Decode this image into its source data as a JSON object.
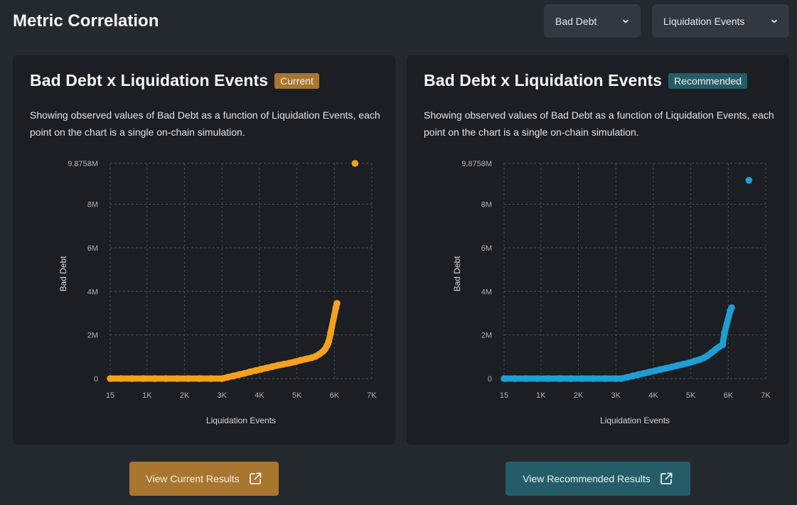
{
  "header": {
    "title": "Metric Correlation",
    "metric_select": {
      "value": "Bad Debt"
    },
    "compare_select": {
      "value": "Liquidation Events"
    }
  },
  "panels": [
    {
      "title": "Bad Debt x Liquidation Events",
      "badge": "Current",
      "description": "Showing observed values of Bad Debt as a function of Liquidation Events, each point on the chart is a single on-chain simulation.",
      "color": "#f5a11e"
    },
    {
      "title": "Bad Debt x Liquidation Events",
      "badge": "Recommended",
      "description": "Showing observed values of Bad Debt as a function of Liquidation Events, each point on the chart is a single on-chain simulation.",
      "color": "#1e9fd3"
    }
  ],
  "buttons": {
    "current": "View Current Results",
    "recommended": "View Recommended Results"
  },
  "chart_data": [
    {
      "type": "scatter",
      "title": "Bad Debt x Liquidation Events",
      "xlabel": "Liquidation Events",
      "ylabel": "Bad Debt",
      "xlim": [
        15,
        7000
      ],
      "ylim": [
        0,
        9875800
      ],
      "x_ticks": [
        15,
        1000,
        2000,
        3000,
        4000,
        5000,
        6000,
        7000
      ],
      "x_tick_labels": [
        "15",
        "1K",
        "2K",
        "3K",
        "4K",
        "5K",
        "6K",
        "7K"
      ],
      "y_ticks": [
        0,
        2000000,
        4000000,
        6000000,
        8000000,
        9875800
      ],
      "y_tick_labels": [
        "0",
        "2M",
        "4M",
        "6M",
        "8M",
        "9.8758M"
      ],
      "grid": true,
      "series": [
        {
          "name": "Current",
          "points": [
            [
              15,
              0
            ],
            [
              300,
              0
            ],
            [
              600,
              0
            ],
            [
              900,
              0
            ],
            [
              1200,
              0
            ],
            [
              1500,
              0
            ],
            [
              1800,
              0
            ],
            [
              2100,
              0
            ],
            [
              2400,
              0
            ],
            [
              2700,
              0
            ],
            [
              3000,
              0
            ],
            [
              3150,
              60000
            ],
            [
              3300,
              120000
            ],
            [
              3450,
              180000
            ],
            [
              3600,
              240000
            ],
            [
              3750,
              310000
            ],
            [
              3900,
              370000
            ],
            [
              4050,
              430000
            ],
            [
              4200,
              490000
            ],
            [
              4350,
              550000
            ],
            [
              4500,
              610000
            ],
            [
              4650,
              660000
            ],
            [
              4800,
              710000
            ],
            [
              4950,
              770000
            ],
            [
              5100,
              840000
            ],
            [
              5250,
              900000
            ],
            [
              5400,
              960000
            ],
            [
              5500,
              1020000
            ],
            [
              5600,
              1120000
            ],
            [
              5700,
              1250000
            ],
            [
              5750,
              1350000
            ],
            [
              5800,
              1500000
            ],
            [
              5830,
              1600000
            ],
            [
              5850,
              1700000
            ],
            [
              5900,
              2100000
            ],
            [
              6040,
              3250000
            ],
            [
              6070,
              3450000
            ],
            [
              6550,
              9875800
            ]
          ]
        },
        {
          "name": "Recommended",
          "points": [
            [
              15,
              0
            ],
            [
              300,
              0
            ],
            [
              600,
              0
            ],
            [
              900,
              0
            ],
            [
              1200,
              0
            ],
            [
              1500,
              0
            ],
            [
              1800,
              0
            ],
            [
              2100,
              0
            ],
            [
              2400,
              0
            ],
            [
              2700,
              0
            ],
            [
              3000,
              0
            ],
            [
              3150,
              0
            ],
            [
              3300,
              60000
            ],
            [
              3450,
              120000
            ],
            [
              3600,
              180000
            ],
            [
              3750,
              240000
            ],
            [
              3900,
              300000
            ],
            [
              4050,
              360000
            ],
            [
              4200,
              420000
            ],
            [
              4350,
              480000
            ],
            [
              4500,
              540000
            ],
            [
              4650,
              600000
            ],
            [
              4800,
              660000
            ],
            [
              4950,
              720000
            ],
            [
              5100,
              800000
            ],
            [
              5250,
              880000
            ],
            [
              5350,
              950000
            ],
            [
              5450,
              1050000
            ],
            [
              5550,
              1180000
            ],
            [
              5650,
              1320000
            ],
            [
              5750,
              1450000
            ],
            [
              5850,
              1550000
            ],
            [
              5900,
              2100000
            ],
            [
              6050,
              3100000
            ],
            [
              6090,
              3250000
            ],
            [
              6550,
              9100000
            ]
          ]
        }
      ]
    }
  ]
}
